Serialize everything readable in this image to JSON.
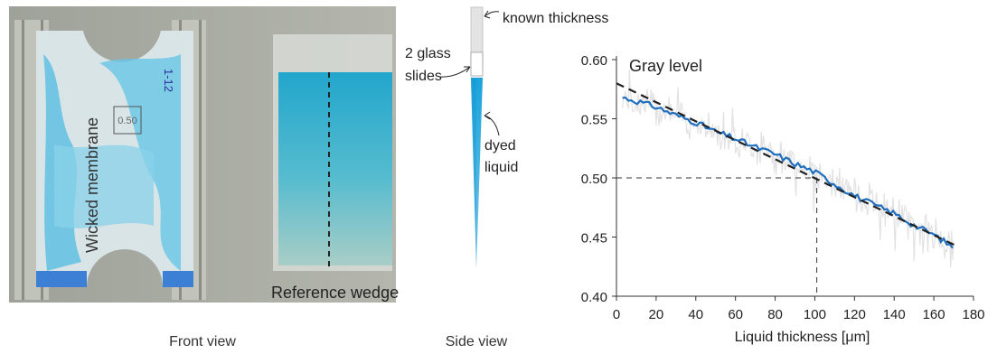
{
  "front_view": {
    "caption": "Front view",
    "membrane_label": "Wicked membrane",
    "box_label": "0.50",
    "wedge_label": "Reference wedge"
  },
  "side_view": {
    "caption": "Side view",
    "known_thickness": "known thickness",
    "glass_slides_line1": "2 glass",
    "glass_slides_line2": "slides",
    "dyed_liquid_line1": "dyed",
    "dyed_liquid_line2": "liquid"
  },
  "colors": {
    "dye": "#2aa9d6",
    "series_line": "#1f6fc0",
    "raw_noise": "#e2e2e2",
    "fit_line": "#222222"
  },
  "chart_data": {
    "type": "line",
    "title": "Gray level",
    "xlabel": "Liquid thickness [μm]",
    "ylabel": "",
    "xlim": [
      0,
      180
    ],
    "ylim": [
      0.4,
      0.6
    ],
    "xticks": [
      0,
      20,
      40,
      60,
      80,
      100,
      120,
      140,
      160,
      180
    ],
    "yticks": [
      "0.40",
      "0.45",
      "0.50",
      "0.55",
      "0.60"
    ],
    "grid": false,
    "series": [
      {
        "x": [
          3,
          10,
          20,
          30,
          40,
          50,
          60,
          70,
          80,
          90,
          100,
          110,
          120,
          130,
          140,
          150,
          160,
          170
        ],
        "y": [
          0.568,
          0.565,
          0.56,
          0.553,
          0.547,
          0.539,
          0.533,
          0.526,
          0.52,
          0.512,
          0.505,
          0.495,
          0.485,
          0.477,
          0.47,
          0.46,
          0.452,
          0.441
        ]
      }
    ],
    "fit_line": {
      "x": [
        0,
        172
      ],
      "y": [
        0.58,
        0.442
      ]
    },
    "reference": {
      "x": 101,
      "y": 0.5
    }
  }
}
